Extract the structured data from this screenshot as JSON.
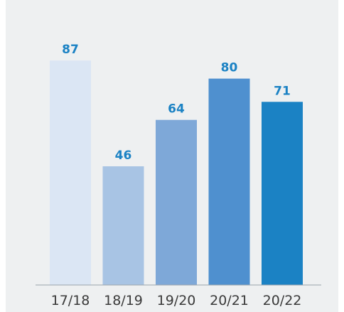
{
  "chart_data": {
    "type": "bar",
    "categories": [
      "17/18",
      "18/19",
      "19/20",
      "20/21",
      "20/22"
    ],
    "values": [
      87,
      46,
      64,
      80,
      71
    ],
    "title": "",
    "xlabel": "",
    "ylabel": "",
    "ylim": [
      0,
      100
    ],
    "grid": false,
    "legend": "none",
    "bar_colors": [
      "#dbe6f4",
      "#a8c4e4",
      "#7ea8d8",
      "#4f90cf",
      "#1b82c4"
    ],
    "label_color": "#1b82c4",
    "panel_background": "#eef0f1",
    "baseline_color": "#9aa3ab"
  }
}
